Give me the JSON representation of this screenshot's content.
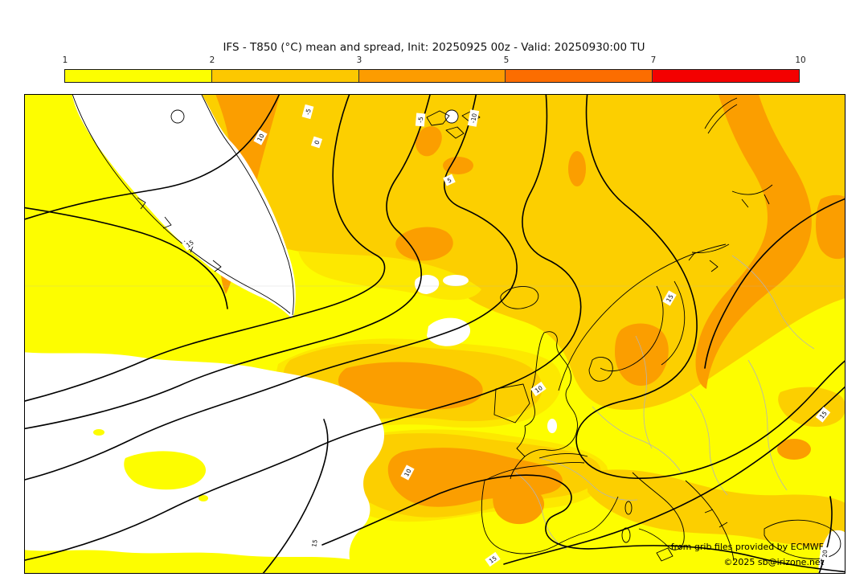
{
  "title": "IFS - T850 (°C) mean and spread, Init: 20250925 00z - Valid: 20250930:00 TU",
  "colorbar": {
    "tick_labels": [
      "1",
      "2",
      "3",
      "5",
      "7",
      "10"
    ],
    "colors": [
      "#fdfe00",
      "#fdc800",
      "#fd9c00",
      "#fc6d00",
      "#f40000"
    ]
  },
  "map": {
    "fill_colors": {
      "spread_below_1": "#ffffff",
      "spread_1_2_yellow": "#fdfd00",
      "spread_transition_lightgold": "#fde800",
      "spread_2_3_gold": "#fccf00",
      "spread_3_5_orange": "#fb9e00"
    },
    "contour_labels": [
      {
        "value": "10"
      },
      {
        "value": "-5"
      },
      {
        "value": "0"
      },
      {
        "value": "-5"
      },
      {
        "value": "-10"
      },
      {
        "value": "5"
      },
      {
        "value": "15"
      },
      {
        "value": "15"
      },
      {
        "value": "10"
      },
      {
        "value": "15"
      },
      {
        "value": "10"
      },
      {
        "value": "15"
      },
      {
        "value": "15"
      },
      {
        "value": "20"
      }
    ],
    "attribution_line1": "from grib files provided by ECMWF",
    "attribution_line2": "©2025 sb@irizone.net"
  }
}
